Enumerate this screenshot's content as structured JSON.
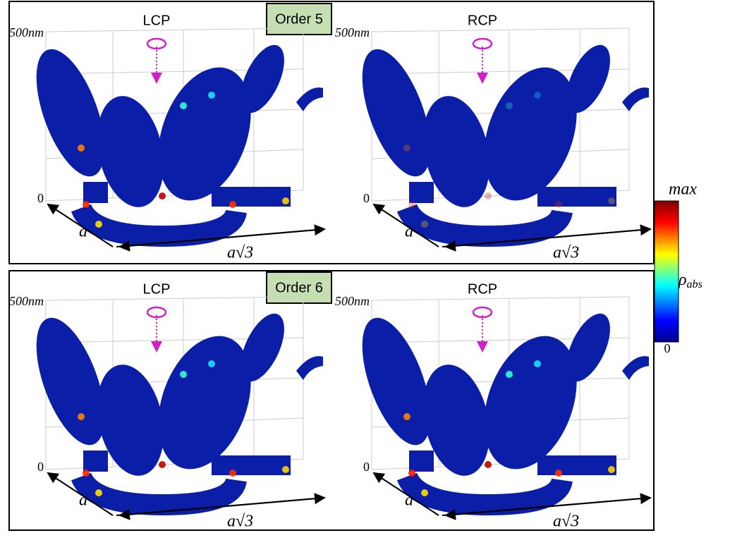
{
  "panels": [
    {
      "order": "Order 5",
      "subplots": [
        {
          "polarization": "LCP",
          "z_max": "500nm",
          "z_min": "0",
          "x_axis": "a",
          "y_axis": "a√3"
        },
        {
          "polarization": "RCP",
          "z_max": "500nm",
          "z_min": "0",
          "x_axis": "a",
          "y_axis": "a√3"
        }
      ]
    },
    {
      "order": "Order 6",
      "subplots": [
        {
          "polarization": "LCP",
          "z_max": "500nm",
          "z_min": "0",
          "x_axis": "a",
          "y_axis": "a√3"
        },
        {
          "polarization": "RCP",
          "z_max": "500nm",
          "z_min": "0",
          "x_axis": "a",
          "y_axis": "a√3"
        }
      ]
    }
  ],
  "colorbar": {
    "max": "max",
    "symbol": "ρ",
    "subscript": "abs",
    "min": "0"
  }
}
